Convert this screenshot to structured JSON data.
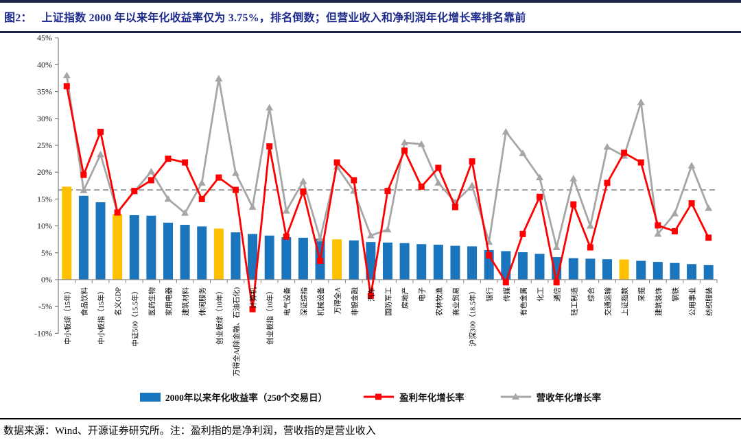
{
  "header": {
    "label": "图2：",
    "title": "上证指数 2000 年以来年化收益率仅为 3.75%，排名倒数；但营业收入和净利润年化增长率排名靠前"
  },
  "footer": {
    "text": "数据来源：Wind、开源证券研究所。注：盈利指的是净利润，营收指的是营业收入"
  },
  "colors": {
    "accent_title": "#1F2B8D",
    "rule_dark": "#1C2447",
    "bar_blue": "#1B75BC",
    "bar_highlight": "#FFC000",
    "profit_red": "#FF0000",
    "revenue_gray": "#A6A6A6",
    "reference_gray": "#7F7F7F",
    "axis_gray": "#808080"
  },
  "chart_data": {
    "type": "bar",
    "combo": "bar with two overlaid line series",
    "title": "上证指数 2000 年以来年化收益率仅为 3.75%，排名倒数；但营业收入和净利润年化增长率排名靠前",
    "xlabel": "",
    "ylabel": "",
    "ylim": [
      -10,
      45
    ],
    "yticks": [
      45,
      40,
      35,
      30,
      25,
      20,
      15,
      10,
      5,
      0,
      -5,
      -10
    ],
    "ytick_format": "percent",
    "grid": false,
    "legend_position": "bottom",
    "reference_line": 16.7,
    "categories": [
      "中小板综（15年）",
      "食品饮料",
      "中小板指（15年）",
      "名义GDP",
      "中证500（15.5年）",
      "医药生物",
      "家用电器",
      "建筑材料",
      "休闲服务",
      "创业板综（10年）",
      "万得全A(除金融、石油石化)",
      "计算机",
      "创业板指（10年）",
      "电气设备",
      "深证综指",
      "机械设备",
      "万得全A",
      "非银金融",
      "汽车",
      "国防军工",
      "房地产",
      "电子",
      "农林牧渔",
      "商业贸易",
      "沪深300（18.5年）",
      "银行",
      "传媒",
      "有色金属",
      "化工",
      "通信",
      "轻工制造",
      "综合",
      "交通运输",
      "上证指数",
      "采掘",
      "建筑装饰",
      "钢铁",
      "公用事业",
      "纺织服装"
    ],
    "bar_series": {
      "name": "2000年以来年化收益率（250个交易日）",
      "values": [
        17.3,
        15.6,
        14.4,
        12.2,
        12.0,
        11.9,
        10.6,
        10.2,
        9.9,
        9.5,
        8.8,
        8.5,
        8.2,
        7.9,
        7.8,
        7.6,
        7.5,
        7.3,
        7.0,
        6.9,
        6.8,
        6.6,
        6.5,
        6.3,
        6.2,
        5.5,
        5.3,
        5.1,
        4.8,
        4.2,
        4.0,
        3.9,
        3.8,
        3.75,
        3.5,
        3.3,
        3.1,
        2.9,
        2.7
      ],
      "highlight_indices": [
        0,
        3,
        9,
        16,
        33
      ],
      "highlight_note": "index/benchmark bars shown in gold"
    },
    "line_series": [
      {
        "name": "盈利年化增长率",
        "marker": "square",
        "values": [
          36,
          19.5,
          27.5,
          12.5,
          16.5,
          18.5,
          22.5,
          21.8,
          15,
          19,
          16.7,
          -5.5,
          24.8,
          8,
          16.4,
          3.5,
          21.8,
          18.5,
          -3,
          16.5,
          24,
          17.3,
          20.8,
          13.5,
          22,
          4.5,
          -0.5,
          8.5,
          15.4,
          -0.5,
          14,
          6,
          18,
          23.6,
          21.8,
          10.1,
          9,
          14.2,
          7.8
        ]
      },
      {
        "name": "营收年化增长率",
        "marker": "triangle",
        "values": [
          38,
          16.6,
          23.3,
          12.5,
          16.4,
          20.1,
          15,
          12.4,
          18,
          37.4,
          19.8,
          13.5,
          32,
          12.8,
          18.3,
          7.6,
          21,
          16.5,
          8.2,
          9.3,
          25.5,
          25.2,
          18,
          14.4,
          17.5,
          7,
          27.5,
          23.5,
          19,
          6,
          18.8,
          10,
          24.7,
          23,
          33,
          8.5,
          12.3,
          21.2,
          13.3
        ]
      }
    ]
  }
}
